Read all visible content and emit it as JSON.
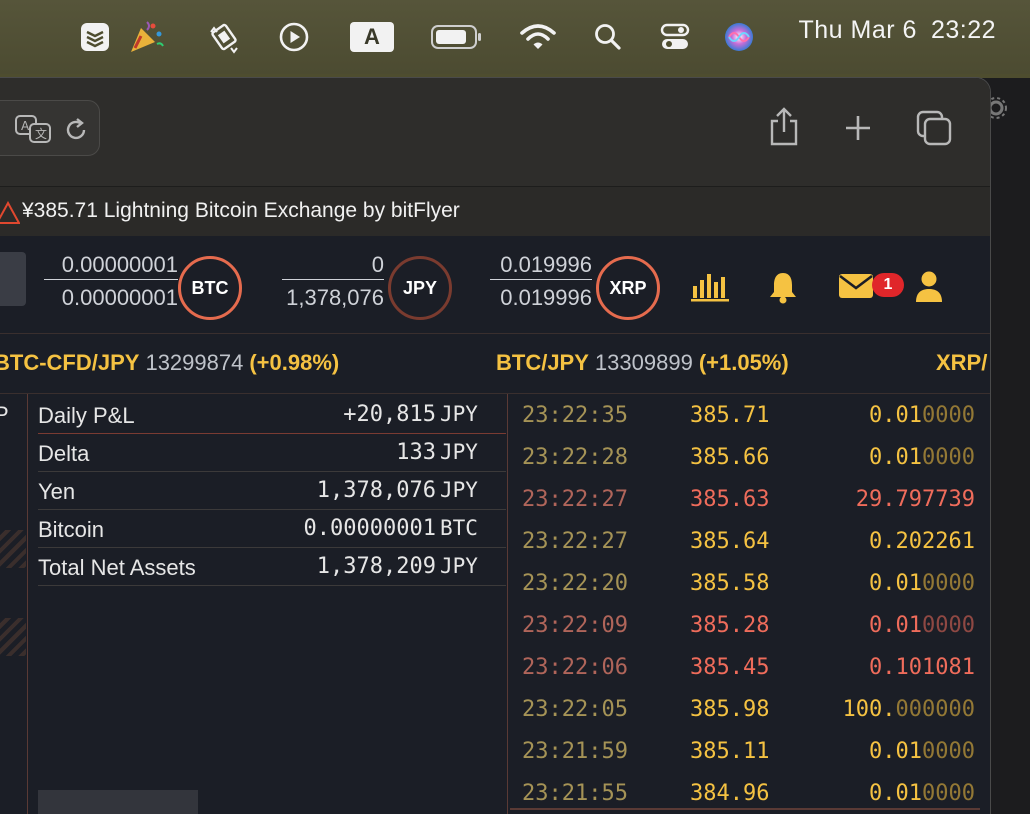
{
  "menubar": {
    "date": "Thu Mar 6",
    "time": "23:22",
    "input_source": "A",
    "icons": [
      "stack-icon",
      "party-popper-icon",
      "screen-rotate-icon",
      "play-circle-icon",
      "input-source-icon",
      "battery-icon",
      "wifi-icon",
      "spotlight-search-icon",
      "control-center-icon",
      "siri-icon"
    ]
  },
  "browser": {
    "tab_title": "¥385.71 Lightning Bitcoin Exchange by bitFlyer",
    "toolbar_icons": [
      "translate-icon",
      "reload-icon",
      "share-icon",
      "new-tab-plus-icon",
      "tab-overview-icon"
    ]
  },
  "balances": [
    {
      "top": "0.00000001",
      "bottom": "0.00000001",
      "coin": "BTC"
    },
    {
      "top": "0",
      "bottom": "1,378,076",
      "coin": "JPY"
    },
    {
      "top": "0.019996",
      "bottom": "0.019996",
      "coin": "XRP"
    }
  ],
  "header_icons": {
    "mail_badge": "1",
    "names": [
      "chart-bars-icon",
      "bell-icon",
      "mail-icon",
      "user-icon"
    ],
    "accent": "#f5c242"
  },
  "ticker": [
    {
      "pair": "BTC-CFD/JPY",
      "price": "13299874",
      "change": "(+0.98%)"
    },
    {
      "pair": "BTC/JPY",
      "price": "13309899",
      "change": "(+1.05%)"
    },
    {
      "pair": "XRP/"
    }
  ],
  "assets": {
    "rows": [
      {
        "label": "Daily P&L",
        "value": "+20,815",
        "currency": "JPY"
      },
      {
        "label": "Delta",
        "value": "133",
        "currency": "JPY"
      },
      {
        "label": "Yen",
        "value": "1,378,076",
        "currency": "JPY"
      },
      {
        "label": "Bitcoin",
        "value": "0.00000001",
        "currency": "BTC"
      },
      {
        "label": "Total Net Assets",
        "value": "1,378,209",
        "currency": "JPY"
      }
    ]
  },
  "left_col_label": "P",
  "trades": [
    {
      "time": "23:22:35",
      "price": "385.71",
      "size_main": "0.01",
      "size_dim": "0000",
      "side": "buy"
    },
    {
      "time": "23:22:28",
      "price": "385.66",
      "size_main": "0.01",
      "size_dim": "0000",
      "side": "buy"
    },
    {
      "time": "23:22:27",
      "price": "385.63",
      "size_main": "29.797739",
      "size_dim": "",
      "side": "sell"
    },
    {
      "time": "23:22:27",
      "price": "385.64",
      "size_main": "0.202261",
      "size_dim": "",
      "side": "buy"
    },
    {
      "time": "23:22:20",
      "price": "385.58",
      "size_main": "0.01",
      "size_dim": "0000",
      "side": "buy"
    },
    {
      "time": "23:22:09",
      "price": "385.28",
      "size_main": "0.01",
      "size_dim": "0000",
      "side": "sell"
    },
    {
      "time": "23:22:06",
      "price": "385.45",
      "size_main": "0.101081",
      "size_dim": "",
      "side": "sell"
    },
    {
      "time": "23:22:05",
      "price": "385.98",
      "size_main": "100.",
      "size_dim": "000000",
      "side": "buy"
    },
    {
      "time": "23:21:59",
      "price": "385.11",
      "size_main": "0.01",
      "size_dim": "0000",
      "side": "buy"
    },
    {
      "time": "23:21:55",
      "price": "384.96",
      "size_main": "0.01",
      "size_dim": "0000",
      "side": "buy"
    }
  ]
}
